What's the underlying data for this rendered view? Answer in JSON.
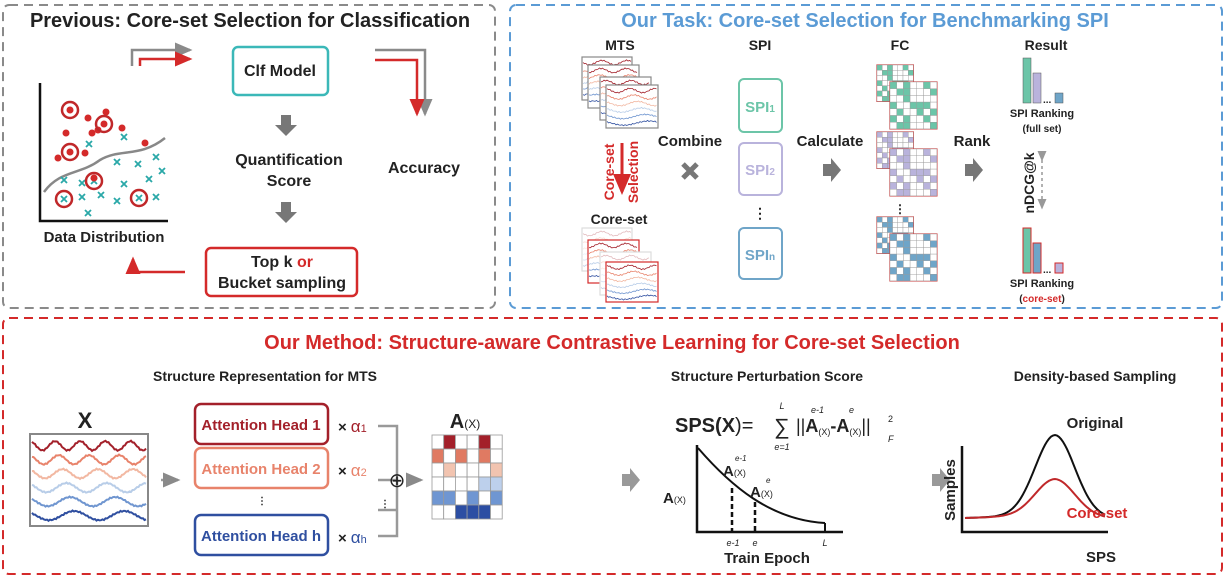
{
  "colors": {
    "previous_border": "#8a8a8a",
    "task_border": "#5b9bd5",
    "method_border": "#d42a2a",
    "task_title": "#5b9bd5",
    "method_title": "#d42a2a",
    "clf_box": "#3bb8b8",
    "red": "#d42a2a",
    "teal": "#6cc5a8",
    "lavender": "#b9b3dc",
    "blue": "#6fa5c8",
    "head1": "#a3202a",
    "head2": "#e8836b",
    "headh": "#2f4fa0",
    "arrow_gray": "#8a8a8a"
  },
  "previous": {
    "title": "Previous: Core-set Selection for Classification",
    "clf_model": "Clf Model",
    "quantification": "Quantification",
    "score": "Score",
    "accuracy": "Accuracy",
    "top_k": "Top k ",
    "or": "or",
    "bucket_sampling": "Bucket sampling",
    "data_distribution": "Data Distribution"
  },
  "task": {
    "title": "Our Task: Core-set Selection for Benchmarking SPI",
    "mts": "MTS",
    "core_set_vertical": "Core-set",
    "selection_vertical": "Selection",
    "core_set": "Core-set",
    "combine": "Combine",
    "spi": "SPI",
    "spi_items": [
      {
        "base": "SPI",
        "sub": "1"
      },
      {
        "base": "SPI",
        "sub": "2"
      },
      {
        "base": "SPI",
        "sub": "n"
      }
    ],
    "vdots": "⋮",
    "calculate": "Calculate",
    "fc": "FC",
    "rank": "Rank",
    "result": "Result",
    "spi_ranking": "SPI Ranking",
    "full_set": "(full set)",
    "paren_open": "(",
    "core_set_red": "core-set",
    "paren_close": ")",
    "ndcg": "nDCG@k",
    "ellipsis": "..."
  },
  "method": {
    "title": "Our Method: Structure-aware Contrastive Learning for Core-set Selection",
    "structure_rep": "Structure Representation for MTS",
    "x_label": "X",
    "heads": [
      {
        "label": "Attention Head 1",
        "times": "×",
        "alpha": "α",
        "sub": "1"
      },
      {
        "label": "Attention Head 2",
        "times": "×",
        "alpha": "α",
        "sub": "2"
      },
      {
        "label": "Attention Head h",
        "times": "×",
        "alpha": "α",
        "sub": "h"
      }
    ],
    "oplus": "⊕",
    "a_base": "A",
    "a_sub": "(X)",
    "perturbation_title": "Structure Perturbation Score",
    "formula": {
      "lhs": "SPS(",
      "x": "X",
      "eq": ")=",
      "sum": "∑",
      "upper": "L",
      "lower": "e=1",
      "norm_open": "||",
      "minus": "-",
      "sup1": "e-1",
      "sup2": "e",
      "norm_close": "||",
      "pow": "2",
      "f": "F"
    },
    "epoch_ticks": [
      "e-1",
      "e",
      "L"
    ],
    "train_epoch": "Train Epoch",
    "density_title": "Density-based Sampling",
    "original": "Original",
    "core_set": "Core-set",
    "samples": "Samples",
    "sps": "SPS"
  }
}
